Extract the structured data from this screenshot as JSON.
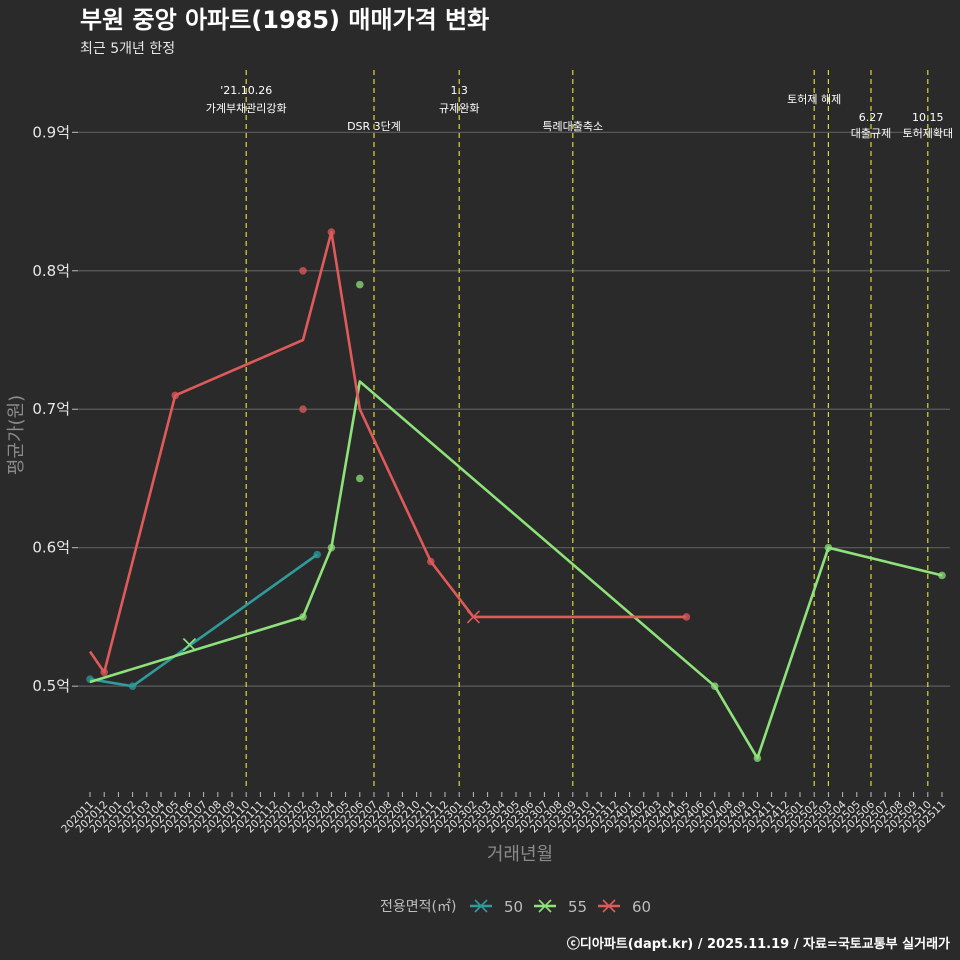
{
  "title": "부원 중앙 아파트(1985) 매매가격 변화",
  "subtitle": "최근 5개년 한정",
  "caption": "ⓒ디아파트(dapt.kr) / 2025.11.19 / 자료=국토교통부 실거래가",
  "colors": {
    "background": "#2b2a2b",
    "grid": "#5c5c5c",
    "event_line": "#d9d933",
    "series_50": "#2f9b9b",
    "series_55": "#8ee27a",
    "series_60": "#e05a5a"
  },
  "chart_data": {
    "type": "line",
    "title": "부원 중앙 아파트(1985) 매매가격 변화",
    "xlabel": "거래년월",
    "ylabel": "평균가(원)",
    "ylim": [
      0.425,
      0.945
    ],
    "y_ticks": [
      {
        "value": 0.5,
        "label": "0.5억"
      },
      {
        "value": 0.6,
        "label": "0.6억"
      },
      {
        "value": 0.7,
        "label": "0.7억"
      },
      {
        "value": 0.8,
        "label": "0.8억"
      },
      {
        "value": 0.9,
        "label": "0.9억"
      }
    ],
    "categories": [
      "202011",
      "202012",
      "202101",
      "202102",
      "202103",
      "202104",
      "202105",
      "202106",
      "202107",
      "202108",
      "202109",
      "202110",
      "202111",
      "202112",
      "202201",
      "202202",
      "202203",
      "202204",
      "202205",
      "202206",
      "202207",
      "202208",
      "202209",
      "202210",
      "202211",
      "202212",
      "202301",
      "202302",
      "202303",
      "202304",
      "202305",
      "202306",
      "202307",
      "202308",
      "202309",
      "202310",
      "202311",
      "202312",
      "202401",
      "202402",
      "202403",
      "202404",
      "202405",
      "202406",
      "202407",
      "202408",
      "202409",
      "202410",
      "202411",
      "202412",
      "202501",
      "202502",
      "202503",
      "202504",
      "202505",
      "202506",
      "202507",
      "202508",
      "202509",
      "202510",
      "202511"
    ],
    "legend_title": "전용면적(㎡)",
    "series": [
      {
        "name": "50",
        "color_key": "series_50",
        "line": [
          [
            "202011",
            0.505
          ],
          [
            "202102",
            0.5
          ],
          [
            "202203",
            0.595
          ]
        ],
        "points": [
          [
            "202011",
            0.505
          ],
          [
            "202102",
            0.5
          ],
          [
            "202203",
            0.595
          ]
        ],
        "cross": [
          [
            "202106",
            0.53
          ]
        ]
      },
      {
        "name": "55",
        "color_key": "series_55",
        "line": [
          [
            "202011",
            0.503
          ],
          [
            "202202",
            0.55
          ],
          [
            "202204",
            0.6
          ],
          [
            "202206",
            0.72
          ],
          [
            "202407",
            0.5
          ],
          [
            "202410",
            0.448
          ],
          [
            "202503",
            0.6
          ],
          [
            "202511",
            0.58
          ]
        ],
        "points": [
          [
            "202202",
            0.55
          ],
          [
            "202204",
            0.6
          ],
          [
            "202206",
            0.79
          ],
          [
            "202206",
            0.65
          ],
          [
            "202407",
            0.5
          ],
          [
            "202410",
            0.448
          ],
          [
            "202503",
            0.6
          ],
          [
            "202511",
            0.58
          ]
        ],
        "cross": [
          [
            "202106",
            0.53
          ]
        ]
      },
      {
        "name": "60",
        "color_key": "series_60",
        "line": [
          [
            "202011",
            0.525
          ],
          [
            "202012",
            0.51
          ],
          [
            "202105",
            0.71
          ],
          [
            "202202",
            0.75
          ],
          [
            "202204",
            0.828
          ],
          [
            "202206",
            0.7
          ],
          [
            "202211",
            0.59
          ],
          [
            "202302",
            0.55
          ],
          [
            "202405",
            0.55
          ]
        ],
        "points": [
          [
            "202012",
            0.51
          ],
          [
            "202105",
            0.71
          ],
          [
            "202202",
            0.8
          ],
          [
            "202202",
            0.7
          ],
          [
            "202204",
            0.828
          ],
          [
            "202211",
            0.59
          ],
          [
            "202405",
            0.55
          ]
        ],
        "cross": [
          [
            "202302",
            0.55
          ]
        ]
      }
    ],
    "events": [
      {
        "month": "202110",
        "label1": "'21.10.26",
        "label2": "가계부채관리강화",
        "tier": "top"
      },
      {
        "month": "202207",
        "label1": "",
        "label2": "DSR 3단계",
        "tier": "mid"
      },
      {
        "month": "202301",
        "label1": "1.3",
        "label2": "규제완화",
        "tier": "top"
      },
      {
        "month": "202309",
        "label1": "",
        "label2": "특례대출축소",
        "tier": "mid"
      },
      {
        "month": "202502",
        "label1": "",
        "label2": "토허제 해제",
        "tier": "high"
      },
      {
        "month": "202503",
        "label1": "",
        "label2": "",
        "tier": "none"
      },
      {
        "month": "202506",
        "label1": "6.27",
        "label2": "대출규제",
        "tier": "low"
      },
      {
        "month": "202510",
        "label1": "10.15",
        "label2": "토허제확대",
        "tier": "low"
      }
    ]
  }
}
